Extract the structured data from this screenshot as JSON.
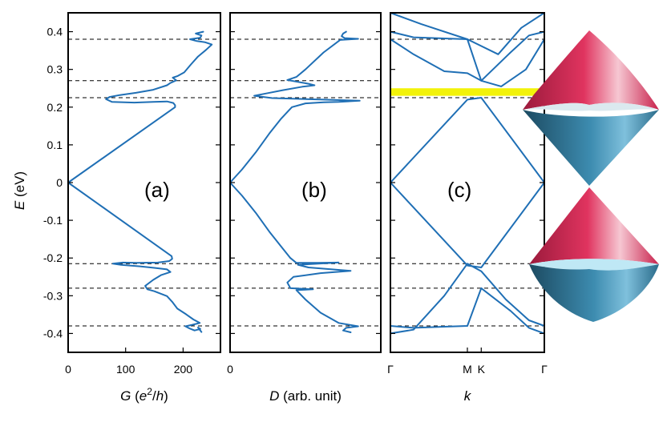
{
  "colors": {
    "curve": "#1f6fb5",
    "highlight": "#f2f20a",
    "cone_upper": "#dc2d58",
    "cone_lower": "#2a6b8a"
  },
  "chart_data": [
    {
      "type": "line",
      "label": "(a)",
      "xlabel": "G (e²/h)",
      "ylabel": "E (eV)",
      "xlim": [
        0,
        265
      ],
      "ylim": [
        -0.45,
        0.45
      ],
      "xticks": [
        "0",
        "100",
        "200"
      ],
      "yticks": [
        "-0.4",
        "-0.3",
        "-0.2",
        "-0.1",
        "0",
        "0.1",
        "0.2",
        "0.3",
        "0.4"
      ],
      "dashed_levels": [
        0.38,
        0.27,
        0.225,
        -0.215,
        -0.28,
        -0.38
      ],
      "series": [
        {
          "points": [
            [
              235,
              0.4
            ],
            [
              222,
              0.395
            ],
            [
              232,
              0.39
            ],
            [
              230,
              0.384
            ],
            [
              212,
              0.38
            ],
            [
              224,
              0.375
            ],
            [
              238,
              0.372
            ],
            [
              250,
              0.366
            ],
            [
              240,
              0.352
            ],
            [
              226,
              0.334
            ],
            [
              213,
              0.312
            ],
            [
              202,
              0.292
            ],
            [
              190,
              0.282
            ],
            [
              182,
              0.278
            ],
            [
              188,
              0.271
            ],
            [
              178,
              0.264
            ],
            [
              172,
              0.258
            ],
            [
              148,
              0.246
            ],
            [
              118,
              0.238
            ],
            [
              90,
              0.232
            ],
            [
              72,
              0.227
            ],
            [
              66,
              0.221
            ],
            [
              76,
              0.214
            ],
            [
              115,
              0.212
            ],
            [
              148,
              0.214
            ],
            [
              172,
              0.215
            ],
            [
              183,
              0.211
            ],
            [
              186,
              0.205
            ],
            [
              186,
              0.2
            ],
            [
              0,
              0
            ],
            [
              180,
              -0.195
            ],
            [
              181,
              -0.202
            ],
            [
              176,
              -0.208
            ],
            [
              156,
              -0.212
            ],
            [
              120,
              -0.213
            ],
            [
              95,
              -0.212
            ],
            [
              78,
              -0.215
            ],
            [
              92,
              -0.218
            ],
            [
              125,
              -0.222
            ],
            [
              150,
              -0.226
            ],
            [
              172,
              -0.23
            ],
            [
              178,
              -0.237
            ],
            [
              162,
              -0.245
            ],
            [
              148,
              -0.258
            ],
            [
              134,
              -0.274
            ],
            [
              138,
              -0.283
            ],
            [
              150,
              -0.288
            ],
            [
              172,
              -0.301
            ],
            [
              181,
              -0.316
            ],
            [
              190,
              -0.334
            ],
            [
              205,
              -0.349
            ],
            [
              218,
              -0.363
            ],
            [
              229,
              -0.372
            ],
            [
              216,
              -0.377
            ],
            [
              204,
              -0.381
            ],
            [
              210,
              -0.386
            ],
            [
              220,
              -0.392
            ],
            [
              230,
              -0.388
            ],
            [
              226,
              -0.384
            ],
            [
              232,
              -0.396
            ]
          ]
        }
      ]
    },
    {
      "type": "line",
      "label": "(b)",
      "xlabel": "D (arb. unit)",
      "ylim": [
        -0.45,
        0.45
      ],
      "xlim": [
        0,
        1
      ],
      "xticks": [
        "0"
      ],
      "dashed_levels": [
        0.38,
        0.27,
        0.225,
        -0.215,
        -0.28,
        -0.38
      ],
      "series": [
        {
          "points": [
            [
              0.77,
              0.4
            ],
            [
              0.75,
              0.395
            ],
            [
              0.74,
              0.388
            ],
            [
              0.76,
              0.383
            ],
            [
              0.85,
              0.381
            ],
            [
              0.73,
              0.378
            ],
            [
              0.62,
              0.345
            ],
            [
              0.5,
              0.3
            ],
            [
              0.44,
              0.28
            ],
            [
              0.38,
              0.272
            ],
            [
              0.52,
              0.262
            ],
            [
              0.56,
              0.258
            ],
            [
              0.48,
              0.254
            ],
            [
              0.35,
              0.245
            ],
            [
              0.25,
              0.237
            ],
            [
              0.16,
              0.23
            ],
            [
              0.28,
              0.224
            ],
            [
              0.44,
              0.222
            ],
            [
              0.62,
              0.22
            ],
            [
              0.86,
              0.217
            ],
            [
              0.72,
              0.214
            ],
            [
              0.62,
              0.213
            ],
            [
              0.5,
              0.21
            ],
            [
              0.41,
              0.2
            ],
            [
              0.34,
              0.17
            ],
            [
              0.26,
              0.13
            ],
            [
              0.17,
              0.08
            ],
            [
              0.08,
              0.035
            ],
            [
              0,
              0
            ],
            [
              0.08,
              -0.035
            ],
            [
              0.17,
              -0.08
            ],
            [
              0.26,
              -0.13
            ],
            [
              0.34,
              -0.17
            ],
            [
              0.4,
              -0.2
            ],
            [
              0.44,
              -0.213
            ],
            [
              0.58,
              -0.213
            ],
            [
              0.72,
              -0.212
            ],
            [
              0.45,
              -0.218
            ],
            [
              0.52,
              -0.225
            ],
            [
              0.8,
              -0.234
            ],
            [
              0.6,
              -0.24
            ],
            [
              0.42,
              -0.25
            ],
            [
              0.38,
              -0.265
            ],
            [
              0.4,
              -0.28
            ],
            [
              0.55,
              -0.283
            ],
            [
              0.44,
              -0.285
            ],
            [
              0.5,
              -0.31
            ],
            [
              0.6,
              -0.345
            ],
            [
              0.72,
              -0.372
            ],
            [
              0.85,
              -0.381
            ],
            [
              0.77,
              -0.385
            ],
            [
              0.75,
              -0.392
            ],
            [
              0.8,
              -0.397
            ]
          ]
        }
      ]
    },
    {
      "type": "line",
      "label": "(c)",
      "xlabel": "k",
      "ylim": [
        -0.45,
        0.45
      ],
      "xlim": [
        0,
        1
      ],
      "xticks": [
        "Γ",
        "M",
        "K",
        "Γ"
      ],
      "xtick_positions": [
        0,
        0.5,
        0.59,
        1
      ],
      "dashed_levels": [
        0.38,
        0.225,
        -0.215,
        -0.28,
        -0.38
      ],
      "highlight_band": [
        0.23,
        0.25
      ],
      "series": [
        {
          "points": [
            [
              0,
              0
            ],
            [
              0.5,
              0.22
            ],
            [
              0.59,
              0.225
            ],
            [
              1,
              0
            ]
          ]
        },
        {
          "points": [
            [
              0,
              0
            ],
            [
              0.5,
              -0.22
            ],
            [
              0.59,
              -0.225
            ],
            [
              1,
              0
            ]
          ]
        },
        {
          "points": [
            [
              0,
              0.38
            ],
            [
              0.15,
              0.34
            ],
            [
              0.35,
              0.295
            ],
            [
              0.5,
              0.29
            ],
            [
              0.59,
              0.27
            ],
            [
              0.72,
              0.255
            ],
            [
              0.88,
              0.3
            ],
            [
              1,
              0.38
            ]
          ]
        },
        {
          "points": [
            [
              0,
              0.4
            ],
            [
              0.15,
              0.385
            ],
            [
              0.35,
              0.382
            ],
            [
              0.5,
              0.38
            ],
            [
              0.59,
              0.27
            ],
            [
              0.78,
              0.345
            ],
            [
              0.9,
              0.39
            ],
            [
              1,
              0.4
            ]
          ]
        },
        {
          "points": [
            [
              0,
              -0.38
            ],
            [
              0.15,
              -0.385
            ],
            [
              0.35,
              -0.382
            ],
            [
              0.5,
              -0.38
            ],
            [
              0.59,
              -0.28
            ],
            [
              0.78,
              -0.34
            ],
            [
              0.9,
              -0.385
            ],
            [
              1,
              -0.4
            ]
          ]
        },
        {
          "points": [
            [
              0,
              -0.4
            ],
            [
              0.15,
              -0.39
            ],
            [
              0.35,
              -0.3
            ],
            [
              0.5,
              -0.215
            ],
            [
              0.59,
              -0.235
            ],
            [
              0.75,
              -0.31
            ],
            [
              0.9,
              -0.365
            ],
            [
              1,
              -0.38
            ]
          ]
        },
        {
          "points": [
            [
              0,
              0.45
            ],
            [
              0.2,
              0.42
            ],
            [
              0.5,
              0.38
            ],
            [
              0.7,
              0.34
            ],
            [
              0.85,
              0.41
            ],
            [
              1,
              0.45
            ]
          ]
        }
      ]
    }
  ]
}
